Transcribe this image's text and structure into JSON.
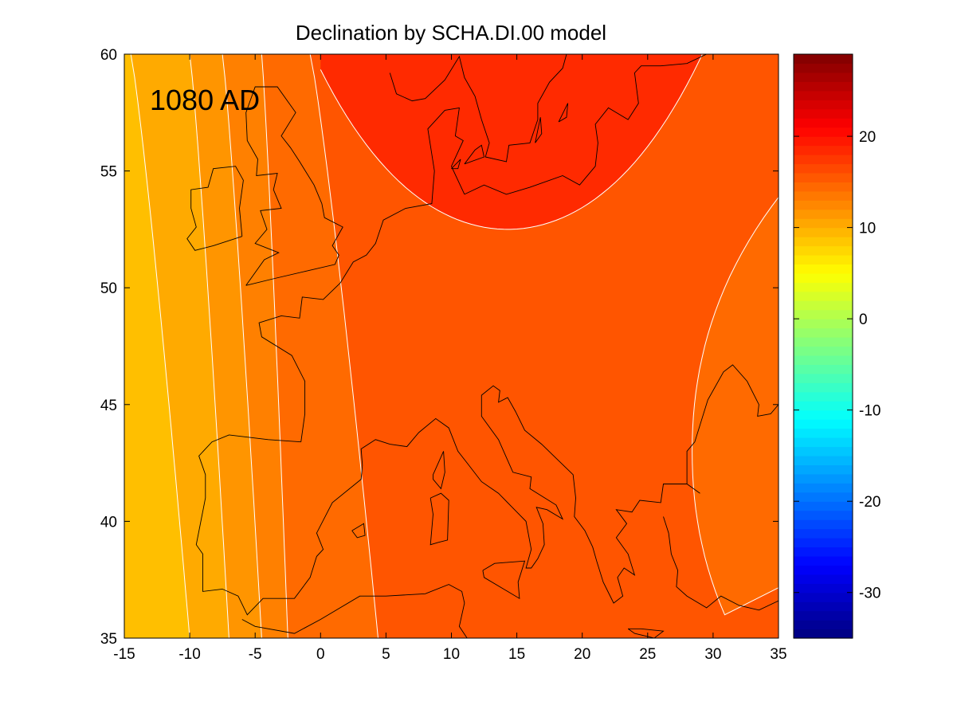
{
  "chart_data": {
    "type": "heatmap",
    "subtype": "filled-contour-map",
    "title": "Declination by SCHA.DI.00 model",
    "annotation": "1080 AD",
    "xlabel": "",
    "ylabel": "",
    "xlim": [
      -15,
      35
    ],
    "ylim": [
      35,
      60
    ],
    "x_ticks": [
      "-15",
      "-10",
      "-5",
      "0",
      "5",
      "10",
      "15",
      "20",
      "25",
      "30",
      "35"
    ],
    "y_ticks": [
      "35",
      "40",
      "45",
      "50",
      "55",
      "60"
    ],
    "colorbar": {
      "range": [
        -35,
        29
      ],
      "ticks": [
        "-30",
        "-20",
        "-10",
        "0",
        "10",
        "20"
      ],
      "colormap": "jet"
    },
    "contour_bands": [
      {
        "level_range": [
          6,
          8
        ],
        "color": "#ffbf00"
      },
      {
        "level_range": [
          8,
          10
        ],
        "color": "#ffaa00"
      },
      {
        "level_range": [
          10,
          12
        ],
        "color": "#ff9500"
      },
      {
        "level_range": [
          12,
          14
        ],
        "color": "#ff8000"
      },
      {
        "level_range": [
          14,
          16
        ],
        "color": "#ff6a00"
      },
      {
        "level_range": [
          16,
          18
        ],
        "color": "#ff5500"
      },
      {
        "level_range": [
          18,
          20
        ],
        "color": "#ff4000"
      },
      {
        "level_range": [
          20,
          22
        ],
        "color": "#ff2a00"
      }
    ],
    "contour_line_color": "#ffffff",
    "coastline_color": "#000000",
    "grid": false
  }
}
